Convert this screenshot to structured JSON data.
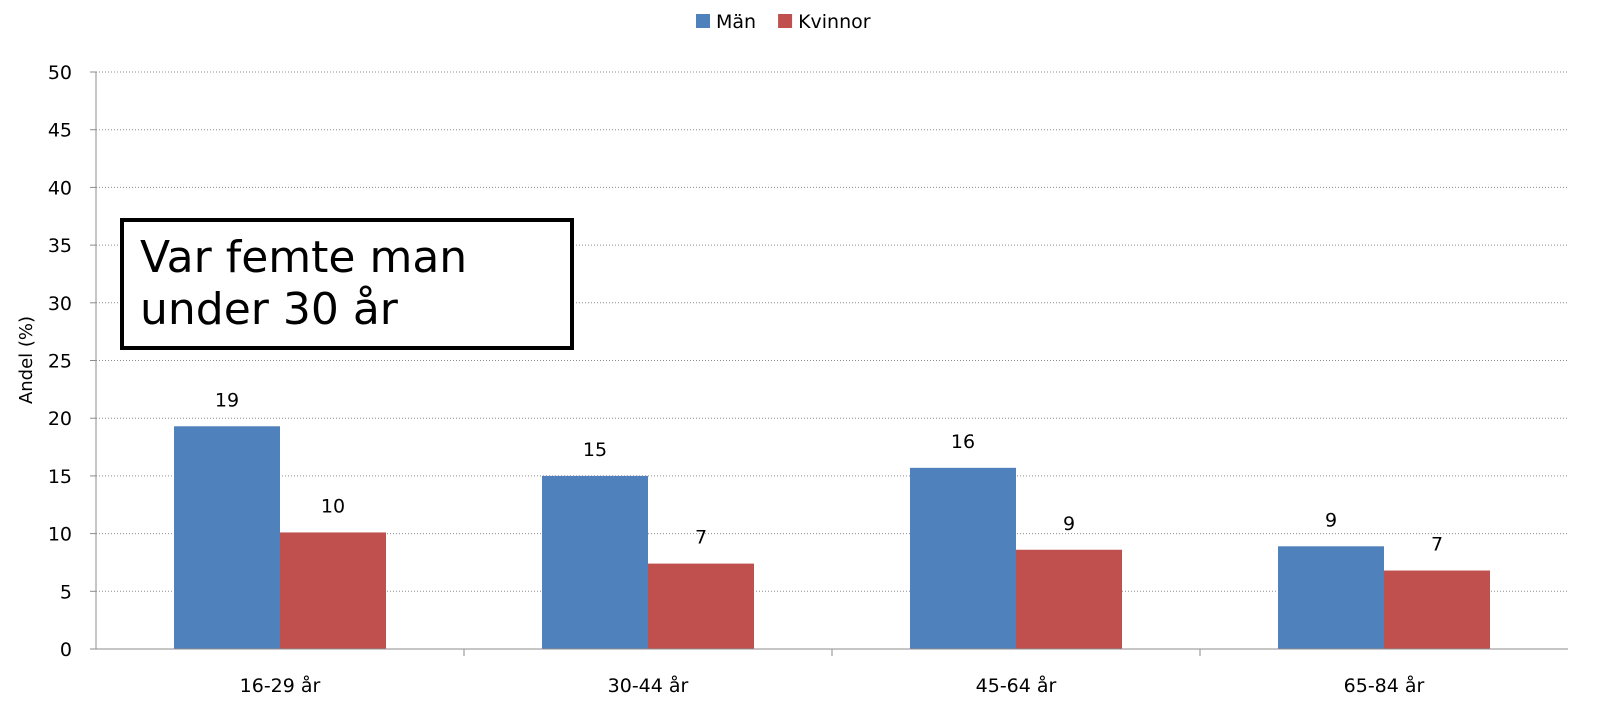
{
  "chart_data": {
    "type": "bar",
    "categories": [
      "16-29 år",
      "30-44 år",
      "45-64 år",
      "65-84 år"
    ],
    "series": [
      {
        "name": "Män",
        "color": "#4F81BD",
        "values": [
          19.3,
          15.0,
          15.7,
          8.9
        ],
        "labels": [
          "19",
          "15",
          "16",
          "9"
        ]
      },
      {
        "name": "Kvinnor",
        "color": "#C0504D",
        "values": [
          10.1,
          7.4,
          8.6,
          6.8
        ],
        "labels": [
          "10",
          "7",
          "9",
          "7"
        ]
      }
    ],
    "ylabel": "Andel (%)",
    "ylim": [
      0,
      50
    ],
    "yticks": [
      0,
      5,
      10,
      15,
      20,
      25,
      30,
      35,
      40,
      45,
      50
    ],
    "grid": "horizontal dotted",
    "legend_position": "top-center",
    "annotation": "Var femte man\nunder 30 år"
  }
}
